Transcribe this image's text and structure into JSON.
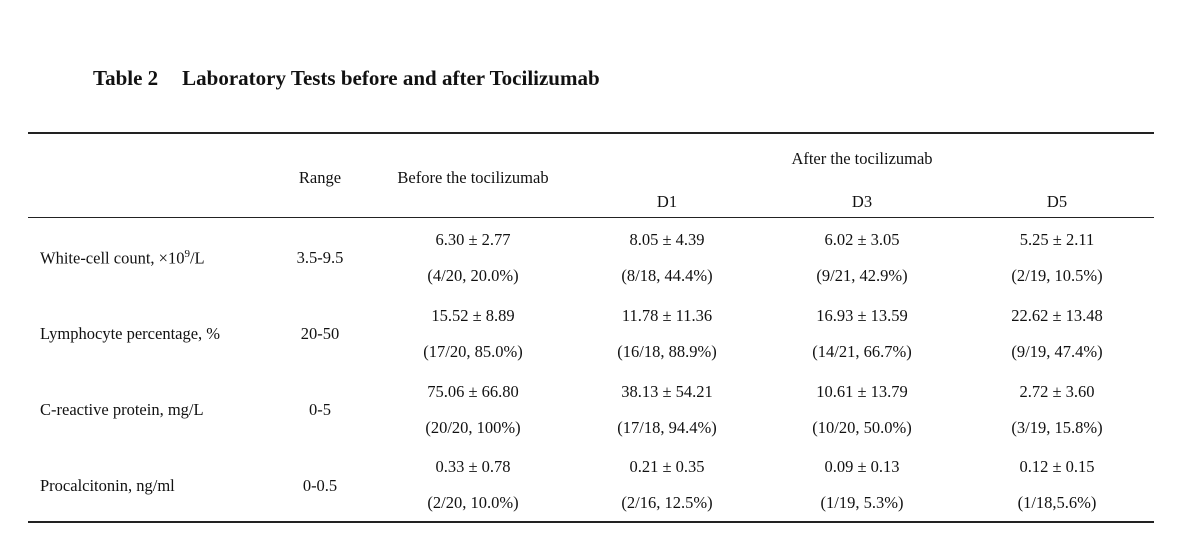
{
  "table": {
    "number": "Table 2",
    "title": "Laboratory Tests before and after Tocilizumab",
    "headers": {
      "range": "Range",
      "before": "Before the tocilizumab",
      "after": "After the tocilizumab",
      "d1": "D1",
      "d3": "D3",
      "d5": "D5"
    },
    "rows": [
      {
        "label_text": "White-cell count, ×10",
        "label_sup": "9",
        "label_unit": "/L",
        "range": "3.5-9.5",
        "before": [
          "6.30 ± 2.77",
          "(4/20, 20.0%)"
        ],
        "d1": [
          "8.05 ± 4.39",
          "(8/18, 44.4%)"
        ],
        "d3": [
          "6.02 ± 3.05",
          "(9/21, 42.9%)"
        ],
        "d5": [
          "5.25 ± 2.11",
          "(2/19, 10.5%)"
        ]
      },
      {
        "label_text": "Lymphocyte percentage, %",
        "range": "20-50",
        "before": [
          "15.52 ± 8.89",
          "(17/20, 85.0%)"
        ],
        "d1": [
          "11.78 ± 11.36",
          "(16/18, 88.9%)"
        ],
        "d3": [
          "16.93 ± 13.59",
          "(14/21, 66.7%)"
        ],
        "d5": [
          "22.62 ± 13.48",
          "(9/19, 47.4%)"
        ]
      },
      {
        "label_text": "C-reactive protein, mg/L",
        "range": "0-5",
        "before": [
          "75.06 ± 66.80",
          "(20/20, 100%)"
        ],
        "d1": [
          "38.13 ± 54.21",
          "(17/18, 94.4%)"
        ],
        "d3": [
          "10.61 ± 13.79",
          "(10/20, 50.0%)"
        ],
        "d5": [
          "2.72 ± 3.60",
          "(3/19, 15.8%)"
        ]
      },
      {
        "label_text": "Procalcitonin, ng/ml",
        "range": "0-0.5",
        "before": [
          "0.33 ± 0.78",
          "(2/20, 10.0%)"
        ],
        "d1": [
          "0.21 ± 0.35",
          "(2/16, 12.5%)"
        ],
        "d3": [
          "0.09 ± 0.13",
          "(1/19, 5.3%)"
        ],
        "d5": [
          "0.12 ± 0.15",
          "(1/18,5.6%)"
        ]
      }
    ]
  }
}
